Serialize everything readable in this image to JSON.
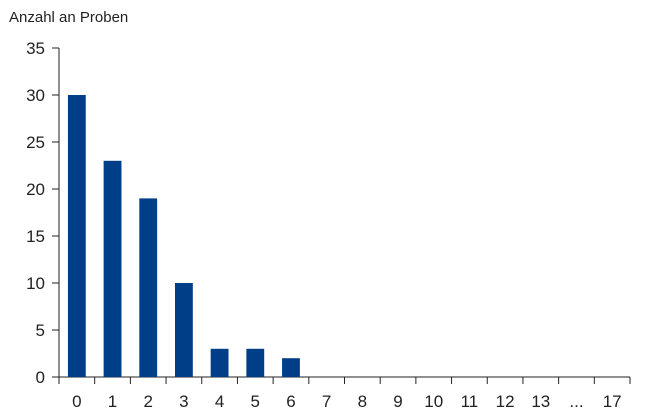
{
  "chart_data": {
    "type": "bar",
    "title": "",
    "xlabel": "",
    "ylabel": "Anzahl an Proben",
    "ylim": [
      0,
      35
    ],
    "yticks": [
      0,
      5,
      10,
      15,
      20,
      25,
      30,
      35
    ],
    "categories": [
      "0",
      "1",
      "2",
      "3",
      "4",
      "5",
      "6",
      "7",
      "8",
      "9",
      "10",
      "11",
      "12",
      "13",
      "...",
      "17"
    ],
    "values": [
      30,
      23,
      19,
      10,
      3,
      3,
      2,
      0,
      0,
      0,
      0,
      0,
      0,
      0,
      0,
      0
    ],
    "bar_color": "#003f87",
    "grid": false
  }
}
